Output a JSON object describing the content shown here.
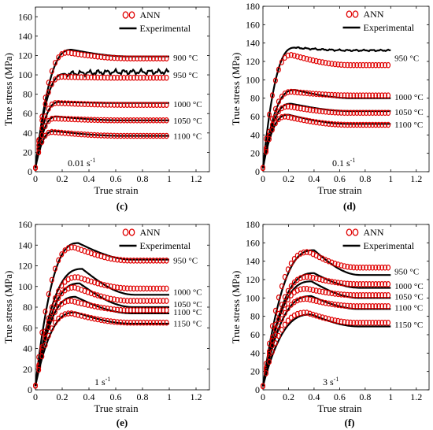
{
  "chart_data": [
    {
      "type": "line",
      "panel_label": "(c)",
      "xlabel": "True strain",
      "ylabel": "True stress (MPa)",
      "xlim": [
        0,
        1.3
      ],
      "ylim": [
        0,
        170
      ],
      "xticks": [
        "0",
        "0.2",
        "0.4",
        "0.6",
        "0.8",
        "1",
        "1.2"
      ],
      "yticks": [
        "0",
        "20",
        "40",
        "60",
        "80",
        "100",
        "120",
        "140",
        "160"
      ],
      "strain_rate_label": "0.01 s",
      "strain_rate_exp": "-1",
      "legend": [
        "ANN",
        "Experimental"
      ],
      "grid": false,
      "series": [
        {
          "label": "900 °C",
          "peak": 126,
          "peak_strain": 0.27,
          "ann_peak": 123,
          "ann_end": 117,
          "exp_end": 119,
          "noise": 0
        },
        {
          "label": "950 °C",
          "peak": 101,
          "peak_strain": 0.22,
          "ann_peak": 98,
          "ann_end": 97,
          "exp_end": 103,
          "noise": 3
        },
        {
          "label": "1000 °C",
          "peak": 72,
          "peak_strain": 0.18,
          "ann_peak": 71,
          "ann_end": 69,
          "exp_end": 71,
          "noise": 0
        },
        {
          "label": "1050 °C",
          "peak": 57,
          "peak_strain": 0.16,
          "ann_peak": 55,
          "ann_end": 53,
          "exp_end": 53,
          "noise": 0
        },
        {
          "label": "1100 °C",
          "peak": 42,
          "peak_strain": 0.14,
          "ann_peak": 41,
          "ann_end": 37,
          "exp_end": 37,
          "noise": 0
        }
      ]
    },
    {
      "type": "line",
      "panel_label": "(d)",
      "xlabel": "True strain",
      "ylabel": "True stress (MPa)",
      "xlim": [
        0,
        1.3
      ],
      "ylim": [
        0,
        180
      ],
      "xticks": [
        "0",
        "0.2",
        "0.4",
        "0.6",
        "0.8",
        "1",
        "1.2"
      ],
      "yticks": [
        "0",
        "20",
        "40",
        "60",
        "80",
        "100",
        "120",
        "140",
        "160",
        "180"
      ],
      "strain_rate_label": "0.1 s",
      "strain_rate_exp": "-1",
      "legend": [
        "ANN",
        "Experimental"
      ],
      "grid": false,
      "series": [
        {
          "label": "950 °C",
          "peak": 135,
          "peak_strain": 0.25,
          "ann_peak": 127,
          "ann_end": 116,
          "exp_end": 132,
          "noise": 1
        },
        {
          "label": "1000 °C",
          "peak": 89,
          "peak_strain": 0.25,
          "ann_peak": 87,
          "ann_end": 83,
          "exp_end": 80,
          "noise": 0
        },
        {
          "label": "1050 °C",
          "peak": 74,
          "peak_strain": 0.22,
          "ann_peak": 71,
          "ann_end": 64,
          "exp_end": 66,
          "noise": 0
        },
        {
          "label": "1100 °C",
          "peak": 62,
          "peak_strain": 0.2,
          "ann_peak": 60,
          "ann_end": 51,
          "exp_end": 52,
          "noise": 0
        }
      ]
    },
    {
      "type": "line",
      "panel_label": "(e)",
      "xlabel": "True strain",
      "ylabel": "True stress (MPa)",
      "xlim": [
        0,
        1.3
      ],
      "ylim": [
        0,
        160
      ],
      "xticks": [
        "0",
        "0.2",
        "0.4",
        "0.6",
        "0.8",
        "1",
        "1.2"
      ],
      "yticks": [
        "0",
        "20",
        "40",
        "60",
        "80",
        "100",
        "120",
        "140",
        "160"
      ],
      "strain_rate_label": "1 s",
      "strain_rate_exp": "-1",
      "legend": [
        "ANN",
        "Experimental"
      ],
      "grid": false,
      "series": [
        {
          "label": "950 °C",
          "peak": 142,
          "peak_strain": 0.32,
          "ann_peak": 138,
          "ann_end": 125,
          "exp_end": 126,
          "noise": 0
        },
        {
          "label": "1000 °C",
          "peak": 117,
          "peak_strain": 0.35,
          "ann_peak": 109,
          "ann_end": 98,
          "exp_end": 92,
          "noise": 0
        },
        {
          "label": "1050 °C",
          "peak": 103,
          "peak_strain": 0.33,
          "ann_peak": 99,
          "ann_end": 86,
          "exp_end": 80,
          "noise": 0
        },
        {
          "label": "1100 °C",
          "peak": 90,
          "peak_strain": 0.3,
          "ann_peak": 86,
          "ann_end": 77,
          "exp_end": 74,
          "noise": 0
        },
        {
          "label": "1150 °C",
          "peak": 75,
          "peak_strain": 0.3,
          "ann_peak": 74,
          "ann_end": 65,
          "exp_end": 64,
          "noise": 0
        }
      ]
    },
    {
      "type": "line",
      "panel_label": "(f)",
      "xlabel": "True strain",
      "ylabel": "True stress (MPa)",
      "xlim": [
        0,
        1.3
      ],
      "ylim": [
        0,
        180
      ],
      "xticks": [
        "0",
        "0.2",
        "0.4",
        "0.6",
        "0.8",
        "1",
        "1.2"
      ],
      "yticks": [
        "0",
        "20",
        "40",
        "60",
        "80",
        "100",
        "120",
        "140",
        "160",
        "180"
      ],
      "strain_rate_label": "3 s",
      "strain_rate_exp": "-1",
      "legend": [
        "ANN",
        "Experimental"
      ],
      "grid": false,
      "series": [
        {
          "label": "950 °C",
          "peak": 152,
          "peak_strain": 0.4,
          "ann_peak": 150,
          "ann_end": 133,
          "exp_end": 125,
          "noise": 0
        },
        {
          "label": "1000 °C",
          "peak": 127,
          "peak_strain": 0.4,
          "ann_peak": 123,
          "ann_end": 115,
          "exp_end": 111,
          "noise": 0
        },
        {
          "label": "1050 °C",
          "peak": 118,
          "peak_strain": 0.38,
          "ann_peak": 110,
          "ann_end": 103,
          "exp_end": 100,
          "noise": 0
        },
        {
          "label": "1100 °C",
          "peak": 102,
          "peak_strain": 0.38,
          "ann_peak": 99,
          "ann_end": 91,
          "exp_end": 88,
          "noise": 0
        },
        {
          "label": "1150 °C",
          "peak": 82,
          "peak_strain": 0.38,
          "ann_peak": 84,
          "ann_end": 73,
          "exp_end": 69,
          "noise": 0
        }
      ]
    }
  ]
}
